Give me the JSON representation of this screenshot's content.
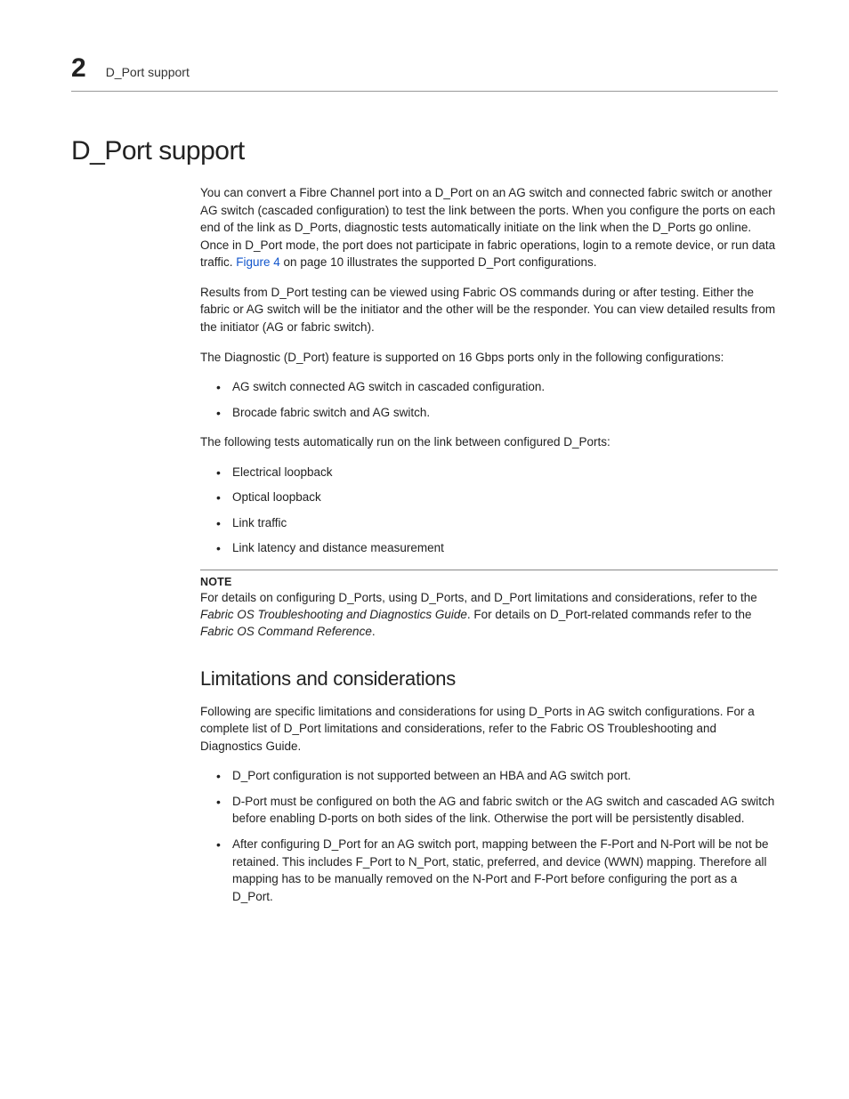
{
  "header": {
    "chapter_number": "2",
    "running_title": "D_Port support"
  },
  "h1": "D_Port support",
  "p1_a": "You can convert a Fibre Channel port into a D_Port on an AG switch and connected fabric switch or another AG switch (cascaded configuration) to test the link between the ports. When you configure the ports on each end of the link as D_Ports, diagnostic tests automatically initiate on the link when the D_Ports go online. Once in D_Port mode, the port does not participate in fabric operations, login to a remote device, or run data traffic. ",
  "p1_link": "Figure 4",
  "p1_b": " on page 10 illustrates the supported D_Port configurations.",
  "p2": "Results from D_Port testing can be viewed using Fabric OS commands during or after testing. Either the fabric or AG switch will be the initiator and the other will be the responder. You can view detailed results from the initiator (AG or fabric switch).",
  "p3": "The Diagnostic (D_Port) feature is supported on 16 Gbps ports only in the following configurations:",
  "list1": [
    "AG switch connected AG switch in cascaded configuration.",
    "Brocade fabric switch and AG switch."
  ],
  "p4": "The following tests automatically run on the link between configured D_Ports:",
  "list2": [
    "Electrical loopback",
    "Optical loopback",
    "Link traffic",
    "Link latency and distance measurement"
  ],
  "note": {
    "label": "NOTE",
    "a": "For details on configuring D_Ports, using D_Ports, and D_Port limitations and considerations, refer to the ",
    "i1": "Fabric OS Troubleshooting and Diagnostics Guide",
    "b": ". For details on D_Port-related commands refer to the ",
    "i2": "Fabric OS Command Reference",
    "c": "."
  },
  "h2": "Limitations and considerations",
  "p5": "Following are specific limitations and considerations for using D_Ports in AG switch configurations. For a complete list of D_Port limitations and considerations, refer to the Fabric OS Troubleshooting and Diagnostics Guide.",
  "list3": [
    "D_Port configuration is not supported between an HBA and AG switch port.",
    "D-Port must be configured on both the AG and fabric switch or the AG switch and cascaded AG switch before enabling D-ports on both sides of the link. Otherwise the port will be persistently disabled.",
    "After configuring D_Port for an AG switch port, mapping between the F-Port and N-Port will be not be retained. This includes F_Port to N_Port, static, preferred, and device (WWN) mapping. Therefore all mapping has to be manually removed on the N-Port and F-Port before configuring the port as a D_Port."
  ]
}
